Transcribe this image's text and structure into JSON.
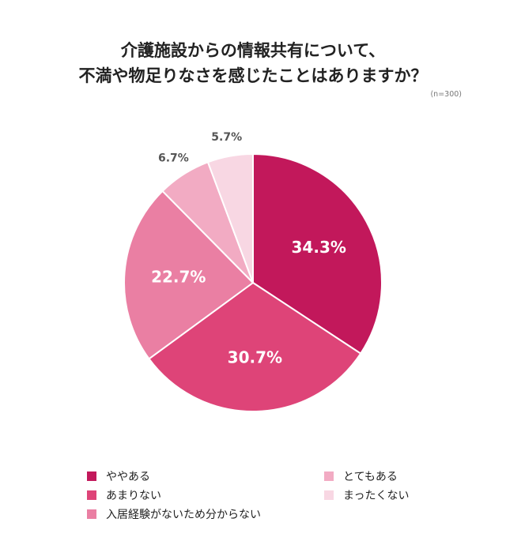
{
  "chart_data": {
    "type": "pie",
    "title_lines": [
      "介護施設からの情報共有について、",
      "不満や物足りなさを感じたことはありますか？"
    ],
    "sample_note": "(n=300)",
    "slices": [
      {
        "label": "ややある",
        "value": 34.3,
        "display": "34.3%",
        "color": "#c2185b"
      },
      {
        "label": "あまりない",
        "value": 30.7,
        "display": "30.7%",
        "color": "#de4478"
      },
      {
        "label": "入居経験がないため分からない",
        "value": 22.7,
        "display": "22.7%",
        "color": "#ea7fa3"
      },
      {
        "label": "とてもある",
        "value": 6.7,
        "display": "6.7%",
        "color": "#f2abc3"
      },
      {
        "label": "まったくない",
        "value": 5.7,
        "display": "5.7%",
        "color": "#f8d7e3"
      }
    ],
    "legend_position": "bottom"
  }
}
